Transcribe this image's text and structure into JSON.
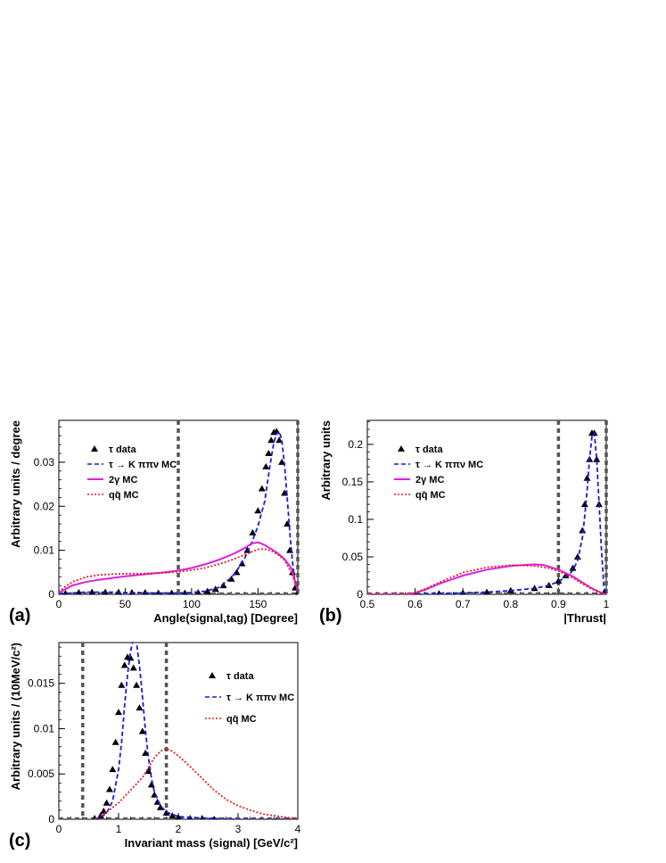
{
  "chart_data": [
    {
      "type": "line",
      "panel": "(a)",
      "xlabel": "Angle(signal,tag) [Degree]",
      "ylabel": "Arbitrary units / degree",
      "xlim": [
        0,
        180
      ],
      "ylim": [
        0,
        0.0395
      ],
      "xticks": [
        "0",
        "50",
        "100",
        "150"
      ],
      "yticks": [
        "0",
        "0.01",
        "0.02",
        "0.03"
      ],
      "cut_lines": [
        90,
        180
      ],
      "legend_position": "top-left",
      "series": [
        {
          "name": "τ data",
          "style": "triangles",
          "color": "#000000",
          "x": [
            5,
            15,
            25,
            35,
            45,
            55,
            65,
            75,
            85,
            95,
            105,
            112,
            118,
            124,
            130,
            134,
            138,
            142,
            146,
            150,
            153,
            156,
            158,
            160,
            162,
            164,
            166,
            168,
            170,
            172,
            174,
            176,
            178,
            180
          ],
          "y": [
            0.0002,
            0.0004,
            0.0005,
            0.0005,
            0.0005,
            0.0004,
            0.0004,
            0.0003,
            0.0003,
            0.0003,
            0.0004,
            0.0007,
            0.0012,
            0.002,
            0.0035,
            0.005,
            0.007,
            0.01,
            0.014,
            0.019,
            0.024,
            0.029,
            0.032,
            0.035,
            0.0368,
            0.037,
            0.035,
            0.03,
            0.023,
            0.016,
            0.01,
            0.005,
            0.0015,
            0.0003
          ]
        },
        {
          "name": "τ → K ππν MC",
          "style": "dashed",
          "color": "#1a1adc",
          "x": [
            0,
            10,
            20,
            30,
            40,
            50,
            60,
            70,
            80,
            90,
            100,
            110,
            120,
            130,
            135,
            140,
            145,
            150,
            155,
            158,
            160,
            162,
            164,
            166,
            168,
            170,
            172,
            174,
            176,
            178,
            180
          ],
          "y": [
            0.0001,
            0.0003,
            0.0005,
            0.0005,
            0.0005,
            0.0004,
            0.0004,
            0.0003,
            0.0003,
            0.0003,
            0.0004,
            0.0007,
            0.0015,
            0.0038,
            0.0058,
            0.0082,
            0.0115,
            0.0155,
            0.021,
            0.027,
            0.031,
            0.0345,
            0.0365,
            0.037,
            0.035,
            0.0295,
            0.022,
            0.014,
            0.0075,
            0.0025,
            0.0003
          ]
        },
        {
          "name": "2γ MC",
          "style": "solid",
          "color": "#e01ee0",
          "x": [
            0,
            5,
            10,
            20,
            30,
            40,
            50,
            60,
            70,
            80,
            90,
            100,
            110,
            120,
            130,
            140,
            145,
            150,
            155,
            160,
            165,
            170,
            175,
            178,
            180
          ],
          "y": [
            0.0003,
            0.0012,
            0.002,
            0.0028,
            0.0033,
            0.0037,
            0.0041,
            0.0044,
            0.0047,
            0.005,
            0.0054,
            0.006,
            0.0068,
            0.0078,
            0.009,
            0.0105,
            0.0115,
            0.0118,
            0.0112,
            0.0103,
            0.0093,
            0.008,
            0.006,
            0.003,
            0.0008
          ]
        },
        {
          "name": "qq̄ MC",
          "style": "dotted",
          "color": "#e02020",
          "x": [
            0,
            5,
            10,
            20,
            30,
            40,
            50,
            60,
            70,
            80,
            90,
            100,
            110,
            120,
            130,
            140,
            150,
            155,
            160,
            165,
            170,
            175,
            180
          ],
          "y": [
            0.0005,
            0.0018,
            0.0028,
            0.0039,
            0.0044,
            0.0046,
            0.0047,
            0.0047,
            0.0048,
            0.0049,
            0.0051,
            0.0055,
            0.006,
            0.0068,
            0.0078,
            0.009,
            0.0102,
            0.0103,
            0.0099,
            0.009,
            0.0078,
            0.005,
            0.001
          ]
        }
      ]
    },
    {
      "type": "line",
      "panel": "(b)",
      "xlabel": "|Thrust|",
      "ylabel": "Arbitrary units",
      "xlim": [
        0.5,
        1.0
      ],
      "ylim": [
        0,
        0.232
      ],
      "xticks": [
        "0.5",
        "0.6",
        "0.7",
        "0.8",
        "0.9",
        "1"
      ],
      "yticks": [
        "0",
        "0.05",
        "0.1",
        "0.15",
        "0.2"
      ],
      "cut_lines": [
        0.9,
        1.0
      ],
      "legend_position": "top-left",
      "series": [
        {
          "name": "τ data",
          "style": "triangles",
          "color": "#000000",
          "x": [
            0.6,
            0.65,
            0.7,
            0.75,
            0.8,
            0.85,
            0.88,
            0.9,
            0.915,
            0.93,
            0.94,
            0.95,
            0.955,
            0.96,
            0.965,
            0.97,
            0.975,
            0.98,
            0.985,
            0.995
          ],
          "y": [
            0.0,
            0.001,
            0.002,
            0.003,
            0.005,
            0.008,
            0.012,
            0.018,
            0.025,
            0.035,
            0.05,
            0.085,
            0.12,
            0.155,
            0.18,
            0.215,
            0.215,
            0.18,
            0.12,
            0.002
          ]
        },
        {
          "name": "τ → K ππν MC",
          "style": "dashed",
          "color": "#1a1adc",
          "x": [
            0.5,
            0.6,
            0.7,
            0.75,
            0.8,
            0.85,
            0.88,
            0.9,
            0.92,
            0.93,
            0.94,
            0.95,
            0.955,
            0.96,
            0.965,
            0.97,
            0.975,
            0.98,
            0.985,
            0.99,
            0.995,
            1.0
          ],
          "y": [
            0.0,
            0.0,
            0.002,
            0.003,
            0.005,
            0.008,
            0.012,
            0.017,
            0.025,
            0.032,
            0.045,
            0.075,
            0.105,
            0.14,
            0.18,
            0.21,
            0.215,
            0.18,
            0.12,
            0.06,
            0.01,
            0.0
          ]
        },
        {
          "name": "2γ MC",
          "style": "solid",
          "color": "#e01ee0",
          "x": [
            0.5,
            0.58,
            0.6,
            0.62,
            0.65,
            0.7,
            0.75,
            0.8,
            0.85,
            0.87,
            0.9,
            0.93,
            0.95,
            0.97,
            0.99,
            1.0
          ],
          "y": [
            0.0,
            0.0,
            0.002,
            0.006,
            0.014,
            0.025,
            0.033,
            0.038,
            0.04,
            0.039,
            0.033,
            0.024,
            0.016,
            0.008,
            0.002,
            0.0
          ]
        },
        {
          "name": "qq̄ MC",
          "style": "dotted",
          "color": "#e02020",
          "x": [
            0.5,
            0.58,
            0.6,
            0.62,
            0.65,
            0.7,
            0.75,
            0.8,
            0.85,
            0.88,
            0.9,
            0.93,
            0.95,
            0.97,
            0.99,
            1.0
          ],
          "y": [
            0.0,
            0.0,
            0.002,
            0.007,
            0.016,
            0.029,
            0.036,
            0.039,
            0.038,
            0.035,
            0.031,
            0.022,
            0.014,
            0.007,
            0.002,
            0.0
          ]
        }
      ]
    },
    {
      "type": "line",
      "panel": "(c)",
      "xlabel": "Invariant mass (signal) [GeV/c²]",
      "ylabel": "Arbitrary units / (10MeV/c²)",
      "xlim": [
        0,
        4
      ],
      "ylim": [
        0,
        0.0195
      ],
      "xticks": [
        "0",
        "1",
        "2",
        "3",
        "4"
      ],
      "yticks": [
        "0",
        "0.005",
        "0.01",
        "0.015"
      ],
      "cut_lines": [
        0.4,
        1.8
      ],
      "legend_position": "top-right",
      "series": [
        {
          "name": "τ data",
          "style": "triangles",
          "color": "#000000",
          "x": [
            0.6,
            0.7,
            0.75,
            0.8,
            0.85,
            0.9,
            0.95,
            1.0,
            1.05,
            1.1,
            1.15,
            1.2,
            1.25,
            1.3,
            1.35,
            1.4,
            1.45,
            1.5,
            1.55,
            1.6,
            1.65,
            1.7,
            1.8,
            1.9,
            2.0,
            2.2,
            2.4,
            2.6
          ],
          "y": [
            0.0001,
            0.0004,
            0.0009,
            0.0018,
            0.0033,
            0.0055,
            0.0085,
            0.0118,
            0.0148,
            0.017,
            0.0179,
            0.0178,
            0.0167,
            0.0148,
            0.0123,
            0.0097,
            0.0073,
            0.0053,
            0.0038,
            0.0027,
            0.0019,
            0.0013,
            0.0007,
            0.0004,
            0.0002,
            0.0001,
            0.0001,
            0.0
          ]
        },
        {
          "name": "τ → K ππν MC",
          "style": "dashed",
          "color": "#1a1adc",
          "x": [
            0.6,
            0.7,
            0.8,
            0.9,
            1.0,
            1.05,
            1.1,
            1.15,
            1.2,
            1.25,
            1.3,
            1.35,
            1.4,
            1.45,
            1.5,
            1.55,
            1.6,
            1.7,
            1.8,
            2.0,
            2.5,
            3.0,
            4.0
          ],
          "y": [
            0.0,
            0.0002,
            0.0007,
            0.002,
            0.0055,
            0.0085,
            0.0125,
            0.016,
            0.0185,
            0.02,
            0.0195,
            0.017,
            0.0135,
            0.0098,
            0.0068,
            0.0045,
            0.003,
            0.0015,
            0.0008,
            0.0003,
            0.0001,
            0.0,
            0.0
          ]
        },
        {
          "name": "qq̄ MC",
          "style": "dotted",
          "color": "#e02020",
          "x": [
            0.6,
            0.8,
            1.0,
            1.2,
            1.4,
            1.5,
            1.6,
            1.7,
            1.8,
            1.9,
            2.0,
            2.2,
            2.4,
            2.6,
            2.8,
            3.0,
            3.2,
            3.4,
            3.6,
            3.8,
            4.0
          ],
          "y": [
            0.0,
            0.0008,
            0.0018,
            0.0032,
            0.0046,
            0.0057,
            0.0068,
            0.0075,
            0.0078,
            0.0075,
            0.007,
            0.0058,
            0.0045,
            0.0032,
            0.0022,
            0.0015,
            0.001,
            0.0006,
            0.0004,
            0.0002,
            0.0001
          ]
        }
      ]
    }
  ]
}
